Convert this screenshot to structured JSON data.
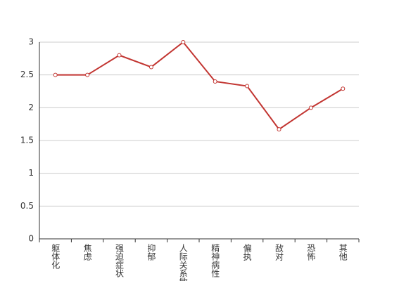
{
  "chart_data": {
    "type": "line",
    "categories": [
      "躯体化",
      "焦虑",
      "强迫症状",
      "抑郁",
      "人际关系敏感",
      "精神病性",
      "偏执",
      "敌对",
      "恐怖",
      "其他"
    ],
    "series": [
      {
        "color": "#c23531",
        "values": [
          2.5,
          2.5,
          2.8,
          2.62,
          3.0,
          2.4,
          2.33,
          1.67,
          2.0,
          2.29
        ]
      }
    ],
    "ylim": [
      0,
      3
    ],
    "yticks": [
      0,
      0.5,
      1,
      1.5,
      2,
      2.5,
      3
    ],
    "grid": true
  }
}
